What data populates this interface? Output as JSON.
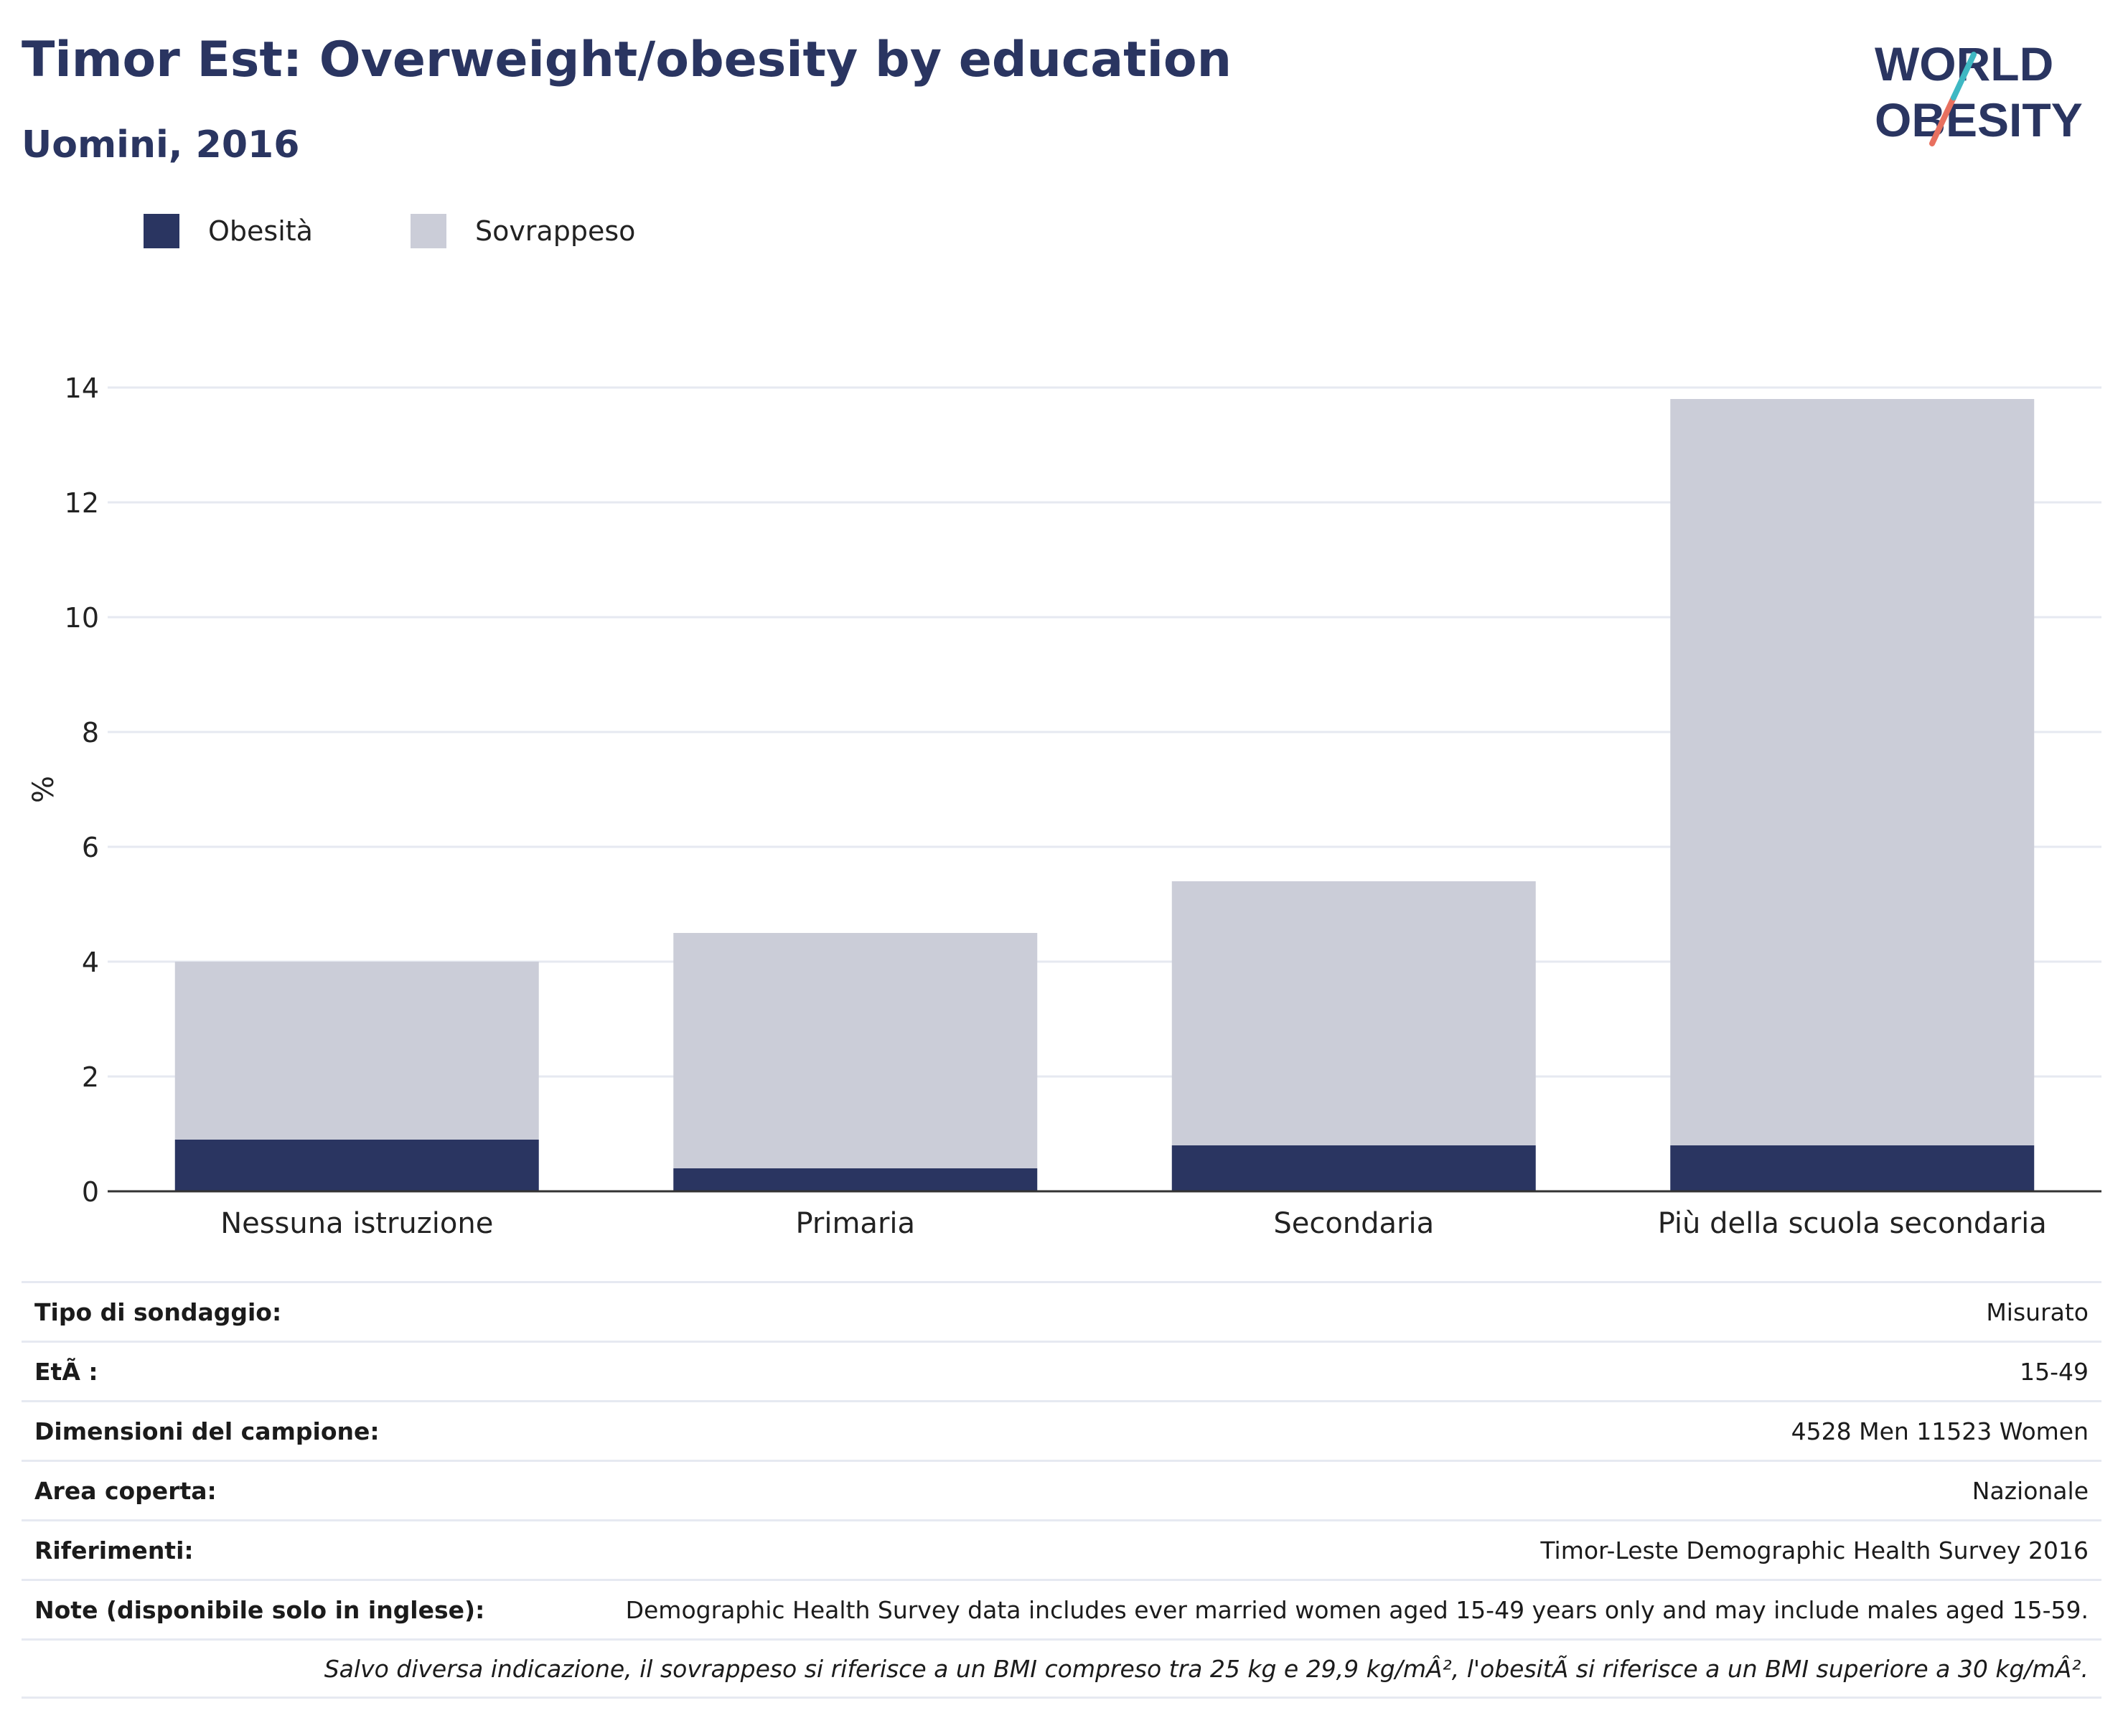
{
  "header": {
    "title": "Timor Est: Overweight/obesity by education",
    "subtitle": "Uomini, 2016"
  },
  "logo": {
    "line1": "WORLD",
    "line2": "OBESITY"
  },
  "legend": [
    {
      "label": "Obesità",
      "color": "#2a3561"
    },
    {
      "label": "Sovrappeso",
      "color": "#cbcdd8"
    }
  ],
  "chart_data": {
    "type": "bar",
    "stacked": true,
    "categories": [
      "Nessuna istruzione",
      "Primaria",
      "Secondaria",
      "Più della scuola secondaria"
    ],
    "series": [
      {
        "name": "Obesità",
        "values": [
          0.9,
          0.4,
          0.8,
          0.8
        ],
        "color": "#2a3561"
      },
      {
        "name": "Sovrappeso",
        "values": [
          3.1,
          4.1,
          4.6,
          13.0
        ],
        "color": "#cbcdd8"
      }
    ],
    "ylabel": "%",
    "xlabel": "",
    "ylim": [
      0,
      14
    ],
    "yticks": [
      0,
      2,
      4,
      6,
      8,
      10,
      12,
      14
    ],
    "grid": true
  },
  "info_table": [
    {
      "key": "Tipo di sondaggio:",
      "value": "Misurato"
    },
    {
      "key": "EtÃ :",
      "value": "15-49"
    },
    {
      "key": "Dimensioni del campione:",
      "value": "4528 Men 11523 Women"
    },
    {
      "key": "Area coperta:",
      "value": "Nazionale"
    },
    {
      "key": "Riferimenti:",
      "value": "Timor-Leste Demographic Health Survey 2016"
    },
    {
      "key": "Note (disponibile solo in inglese):",
      "value": "Demographic Health Survey data includes ever married women aged 15-49 years only and may include males aged 15-59."
    }
  ],
  "footnote": "Salvo diversa indicazione, il sovrappeso si riferisce a un BMI compreso tra 25 kg e 29,9 kg/mÂ², l'obesitÃ  si riferisce a un BMI superiore a 30 kg/mÂ²."
}
